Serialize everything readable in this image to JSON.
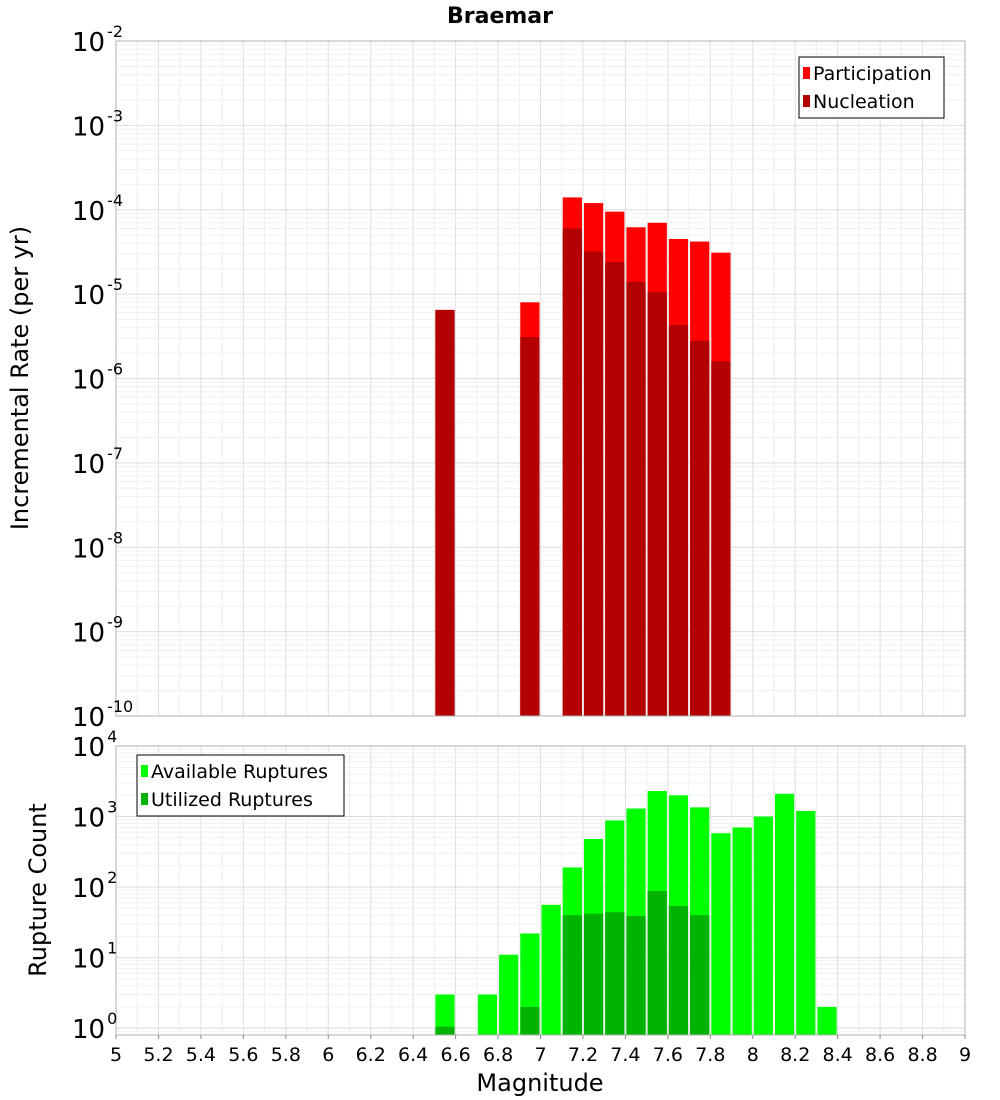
{
  "chart_data": [
    {
      "type": "bar",
      "title": "Braemar",
      "ylabel": "Incremental Rate (per yr)",
      "xlabel": "",
      "xlim": [
        5,
        9
      ],
      "ylim": [
        1e-10,
        0.01
      ],
      "yscale": "log",
      "grid": true,
      "legend_position": "top-right",
      "series": [
        {
          "name": "Participation",
          "color": "#ff0000",
          "x": [
            6.55,
            6.95,
            7.15,
            7.25,
            7.35,
            7.45,
            7.55,
            7.65,
            7.75,
            7.85
          ],
          "values": [
            6.5e-06,
            8e-06,
            0.00014,
            0.00012,
            9.5e-05,
            6.2e-05,
            7e-05,
            4.5e-05,
            4.2e-05,
            3.1e-05
          ]
        },
        {
          "name": "Nucleation",
          "color": "#b30000",
          "x": [
            6.55,
            6.95,
            7.15,
            7.25,
            7.35,
            7.45,
            7.55,
            7.65,
            7.75,
            7.85
          ],
          "values": [
            6.5e-06,
            3.1e-06,
            6e-05,
            3.2e-05,
            2.4e-05,
            1.4e-05,
            1.05e-05,
            4.3e-06,
            2.8e-06,
            1.6e-06
          ]
        }
      ]
    },
    {
      "type": "bar",
      "title": "",
      "ylabel": "Rupture Count",
      "xlabel": "Magnitude",
      "xlim": [
        5,
        9
      ],
      "ylim": [
        0.8,
        10000
      ],
      "yscale": "log",
      "grid": true,
      "legend_position": "top-left",
      "xticks": [
        "5",
        "5.2",
        "5.4",
        "5.6",
        "5.8",
        "6",
        "6.2",
        "6.4",
        "6.6",
        "6.8",
        "7",
        "7.2",
        "7.4",
        "7.6",
        "7.8",
        "8",
        "8.2",
        "8.4",
        "8.6",
        "8.8",
        "9"
      ],
      "series": [
        {
          "name": "Available Ruptures",
          "color": "#00ff00",
          "x": [
            6.55,
            6.75,
            6.85,
            6.95,
            7.05,
            7.15,
            7.25,
            7.35,
            7.45,
            7.55,
            7.65,
            7.75,
            7.85,
            7.95,
            8.05,
            8.15,
            8.25,
            8.35
          ],
          "values": [
            3,
            3,
            11,
            22,
            56,
            190,
            480,
            880,
            1300,
            2300,
            2000,
            1350,
            580,
            700,
            1000,
            2100,
            1200,
            2
          ]
        },
        {
          "name": "Utilized Ruptures",
          "color": "#00b300",
          "x": [
            6.55,
            6.95,
            7.15,
            7.25,
            7.35,
            7.45,
            7.55,
            7.65,
            7.75
          ],
          "values": [
            1.05,
            2,
            40,
            42,
            44,
            39,
            88,
            54,
            40
          ]
        }
      ]
    }
  ]
}
